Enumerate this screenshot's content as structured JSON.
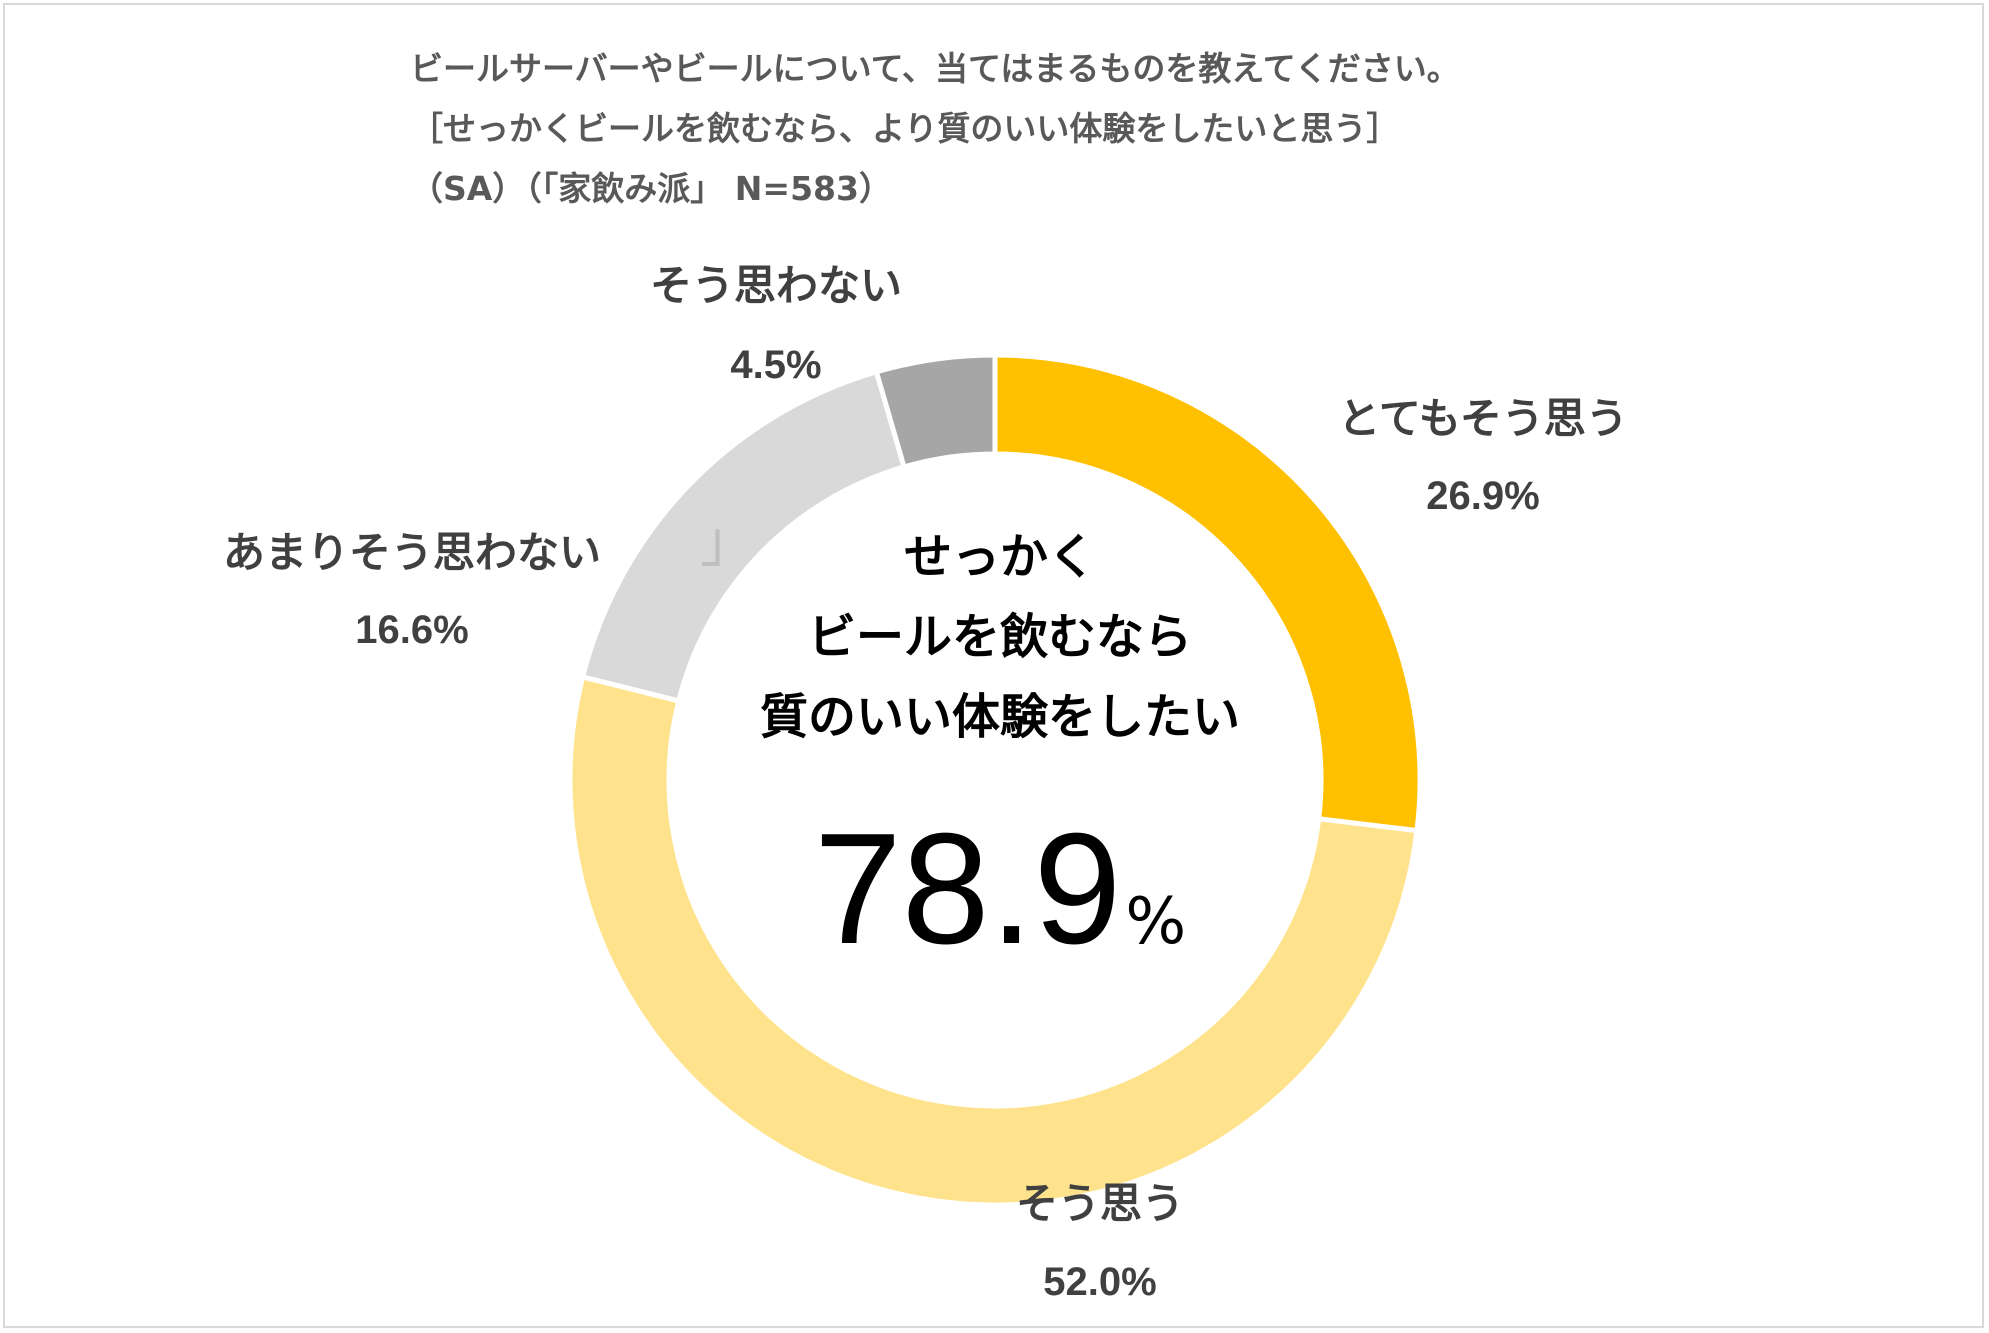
{
  "chart_data": {
    "type": "pie",
    "subtype": "donut",
    "title_lines": [
      "ビールサーバーやビールについて、当てはまるものを教えてください。",
      "［せっかくビールを飲むなら、より質のいい体験をしたいと思う］",
      "（SA）（「家飲み派」 N=583）"
    ],
    "categories": [
      "とてもそう思う",
      "そう思う",
      "あまりそう思わない",
      "そう思わない"
    ],
    "values": [
      26.9,
      52.0,
      16.6,
      4.5
    ],
    "value_labels": [
      "26.9%",
      "52.0%",
      "16.6%",
      "4.5%"
    ],
    "colors": [
      "#FFC000",
      "#FFE38C",
      "#D9D9D9",
      "#A6A6A6"
    ],
    "start": "top",
    "direction": "clockwise",
    "center_text": {
      "lines": [
        "せっかく",
        "ビールを飲むなら",
        "質のいい体験をしたい"
      ],
      "value": "78.9",
      "unit": "%"
    },
    "decorative_bracket": "」"
  }
}
